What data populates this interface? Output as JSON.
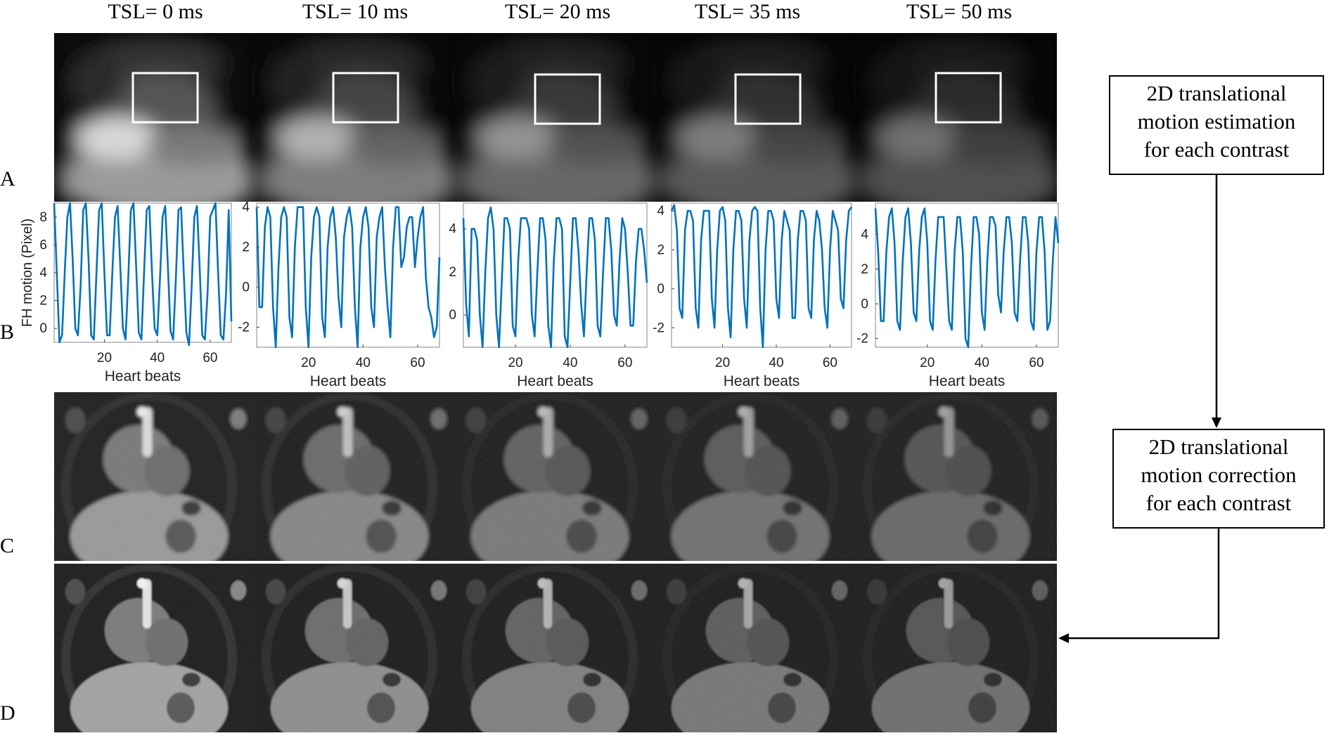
{
  "columns": [
    {
      "tsl_label": "TSL= 0 ms"
    },
    {
      "tsl_label": "TSL= 10 ms"
    },
    {
      "tsl_label": "TSL= 20 ms"
    },
    {
      "tsl_label": "TSL= 35 ms"
    },
    {
      "tsl_label": "TSL= 50 ms"
    }
  ],
  "panels": {
    "a": "A",
    "b": "B",
    "c": "C",
    "d": "D"
  },
  "flowchart": {
    "estimation": [
      "2D translational",
      "motion estimation",
      "for each contrast"
    ],
    "correction": [
      "2D translational",
      "motion correction",
      "for each contrast"
    ]
  },
  "chart_data": [
    {
      "type": "line",
      "xlabel": "Heart beats",
      "ylabel": "FH motion (Pixel)",
      "xlim": [
        1,
        68
      ],
      "ylim": [
        -1,
        9
      ],
      "xticks": [
        20,
        40,
        60
      ],
      "yticks": [
        0,
        2,
        4,
        6,
        8
      ],
      "series_color": "#0072BD",
      "values": [
        9.0,
        4.0,
        -1.0,
        -0.5,
        4.0,
        8.0,
        9.0,
        5.0,
        0.0,
        -0.5,
        3.0,
        8.5,
        9.0,
        5.0,
        -0.5,
        -0.8,
        4.0,
        8.5,
        9.0,
        4.0,
        -0.5,
        -0.5,
        4.0,
        8.0,
        8.8,
        4.5,
        0.0,
        -0.8,
        3.5,
        8.5,
        9.0,
        4.5,
        -0.3,
        -0.8,
        4.0,
        8.5,
        8.8,
        4.0,
        0.0,
        -0.5,
        3.5,
        8.0,
        8.8,
        4.5,
        -0.2,
        -0.8,
        3.5,
        8.5,
        8.7,
        4.0,
        -0.3,
        -1.2,
        3.0,
        8.0,
        8.8,
        4.5,
        -0.5,
        -0.8,
        2.5,
        8.0,
        8.5,
        9.0,
        4.0,
        -0.5,
        -0.8,
        2.5,
        8.5,
        0.5
      ]
    },
    {
      "type": "line",
      "xlabel": "Heart beats",
      "ylabel": "",
      "xlim": [
        1,
        68
      ],
      "ylim": [
        -3,
        4.2
      ],
      "xticks": [
        20,
        40,
        60
      ],
      "yticks": [
        -2,
        0,
        2,
        4
      ],
      "series_color": "#0072BD",
      "values": [
        4.0,
        -1.0,
        -1.0,
        3.0,
        4.0,
        3.5,
        -1.0,
        -3.0,
        1.0,
        3.5,
        4.0,
        3.5,
        -1.5,
        -2.5,
        2.0,
        4.0,
        4.0,
        4.0,
        -1.0,
        -3.0,
        1.5,
        3.5,
        4.0,
        3.5,
        -1.5,
        -2.5,
        2.0,
        3.5,
        4.0,
        2.5,
        -0.5,
        -2.0,
        2.5,
        3.5,
        4.0,
        3.0,
        -1.0,
        -3.0,
        2.0,
        3.5,
        4.0,
        3.0,
        -1.0,
        -2.0,
        2.5,
        3.5,
        4.0,
        1.0,
        -1.0,
        -2.5,
        2.0,
        4.0,
        4.0,
        1.0,
        1.5,
        3.0,
        3.5,
        3.5,
        1.0,
        2.5,
        3.5,
        4.0,
        0.5,
        -1.0,
        -1.5,
        -2.5,
        -2.0,
        1.5
      ]
    },
    {
      "type": "line",
      "xlabel": "Heart beats",
      "ylabel": "",
      "xlim": [
        1,
        68
      ],
      "ylim": [
        -1.5,
        5.2
      ],
      "xticks": [
        20,
        40,
        60
      ],
      "yticks": [
        0,
        2,
        4
      ],
      "series_color": "#0072BD",
      "values": [
        4.5,
        0.5,
        -1.0,
        4.0,
        4.0,
        3.5,
        0.0,
        -1.5,
        2.0,
        4.5,
        5.0,
        4.0,
        0.0,
        -1.5,
        1.5,
        4.5,
        4.5,
        4.0,
        -0.5,
        -1.0,
        2.5,
        4.5,
        4.5,
        4.5,
        4.0,
        0.0,
        -1.0,
        2.0,
        4.5,
        4.5,
        3.5,
        -0.5,
        -1.5,
        2.5,
        4.5,
        4.5,
        4.0,
        -1.0,
        -1.5,
        1.5,
        4.5,
        4.5,
        3.0,
        0.5,
        -1.0,
        2.0,
        4.5,
        4.5,
        3.5,
        -0.5,
        -1.0,
        2.0,
        4.5,
        4.5,
        3.0,
        0.0,
        -0.5,
        2.5,
        4.5,
        4.0,
        2.0,
        -0.5,
        -0.5,
        2.5,
        4.0,
        4.0,
        3.0,
        1.5
      ]
    },
    {
      "type": "line",
      "xlabel": "Heart beats",
      "ylabel": "",
      "xlim": [
        1,
        68
      ],
      "ylim": [
        -3,
        4.4
      ],
      "xticks": [
        20,
        40,
        60
      ],
      "yticks": [
        -2,
        0,
        2,
        4
      ],
      "series_color": "#0072BD",
      "values": [
        4.0,
        4.3,
        3.0,
        -1.0,
        -1.5,
        3.0,
        4.0,
        4.0,
        3.5,
        -1.0,
        -2.0,
        2.5,
        4.0,
        4.0,
        4.0,
        -0.5,
        -2.0,
        2.0,
        4.0,
        4.2,
        3.5,
        -1.0,
        -2.5,
        2.0,
        4.0,
        4.0,
        3.5,
        -0.5,
        -2.0,
        2.5,
        4.0,
        4.2,
        4.0,
        -1.0,
        -3.0,
        2.0,
        4.0,
        4.0,
        3.5,
        -0.5,
        -1.5,
        2.5,
        4.0,
        3.5,
        3.0,
        -1.5,
        -1.5,
        2.5,
        4.0,
        4.0,
        3.5,
        -1.0,
        -1.5,
        2.5,
        4.0,
        3.5,
        2.0,
        -1.0,
        -2.0,
        2.0,
        4.0,
        3.5,
        3.0,
        -0.5,
        -1.0,
        2.5,
        4.0,
        4.2
      ]
    },
    {
      "type": "line",
      "xlabel": "Heart beats",
      "ylabel": "",
      "xlim": [
        1,
        68
      ],
      "ylim": [
        -2.5,
        5.8
      ],
      "xticks": [
        20,
        40,
        60
      ],
      "yticks": [
        -2,
        0,
        2,
        4
      ],
      "series_color": "#0072BD",
      "values": [
        5.5,
        3.0,
        -1.0,
        -1.0,
        3.0,
        5.0,
        5.5,
        3.5,
        -1.0,
        -1.5,
        2.5,
        5.0,
        5.5,
        3.5,
        -0.5,
        -1.0,
        3.0,
        5.0,
        5.5,
        3.5,
        -1.0,
        -1.5,
        2.5,
        5.0,
        5.0,
        5.0,
        2.0,
        -1.0,
        -1.5,
        3.0,
        5.0,
        5.0,
        3.0,
        -2.0,
        -2.5,
        2.0,
        5.0,
        5.0,
        4.0,
        -0.5,
        -1.5,
        2.5,
        5.0,
        5.0,
        4.5,
        0.5,
        -0.5,
        3.0,
        5.0,
        5.0,
        3.5,
        -0.5,
        -1.0,
        2.5,
        5.0,
        5.0,
        3.5,
        -1.0,
        -1.5,
        3.0,
        5.0,
        5.0,
        3.0,
        -1.5,
        -1.0,
        2.5,
        5.0,
        3.5
      ]
    }
  ]
}
